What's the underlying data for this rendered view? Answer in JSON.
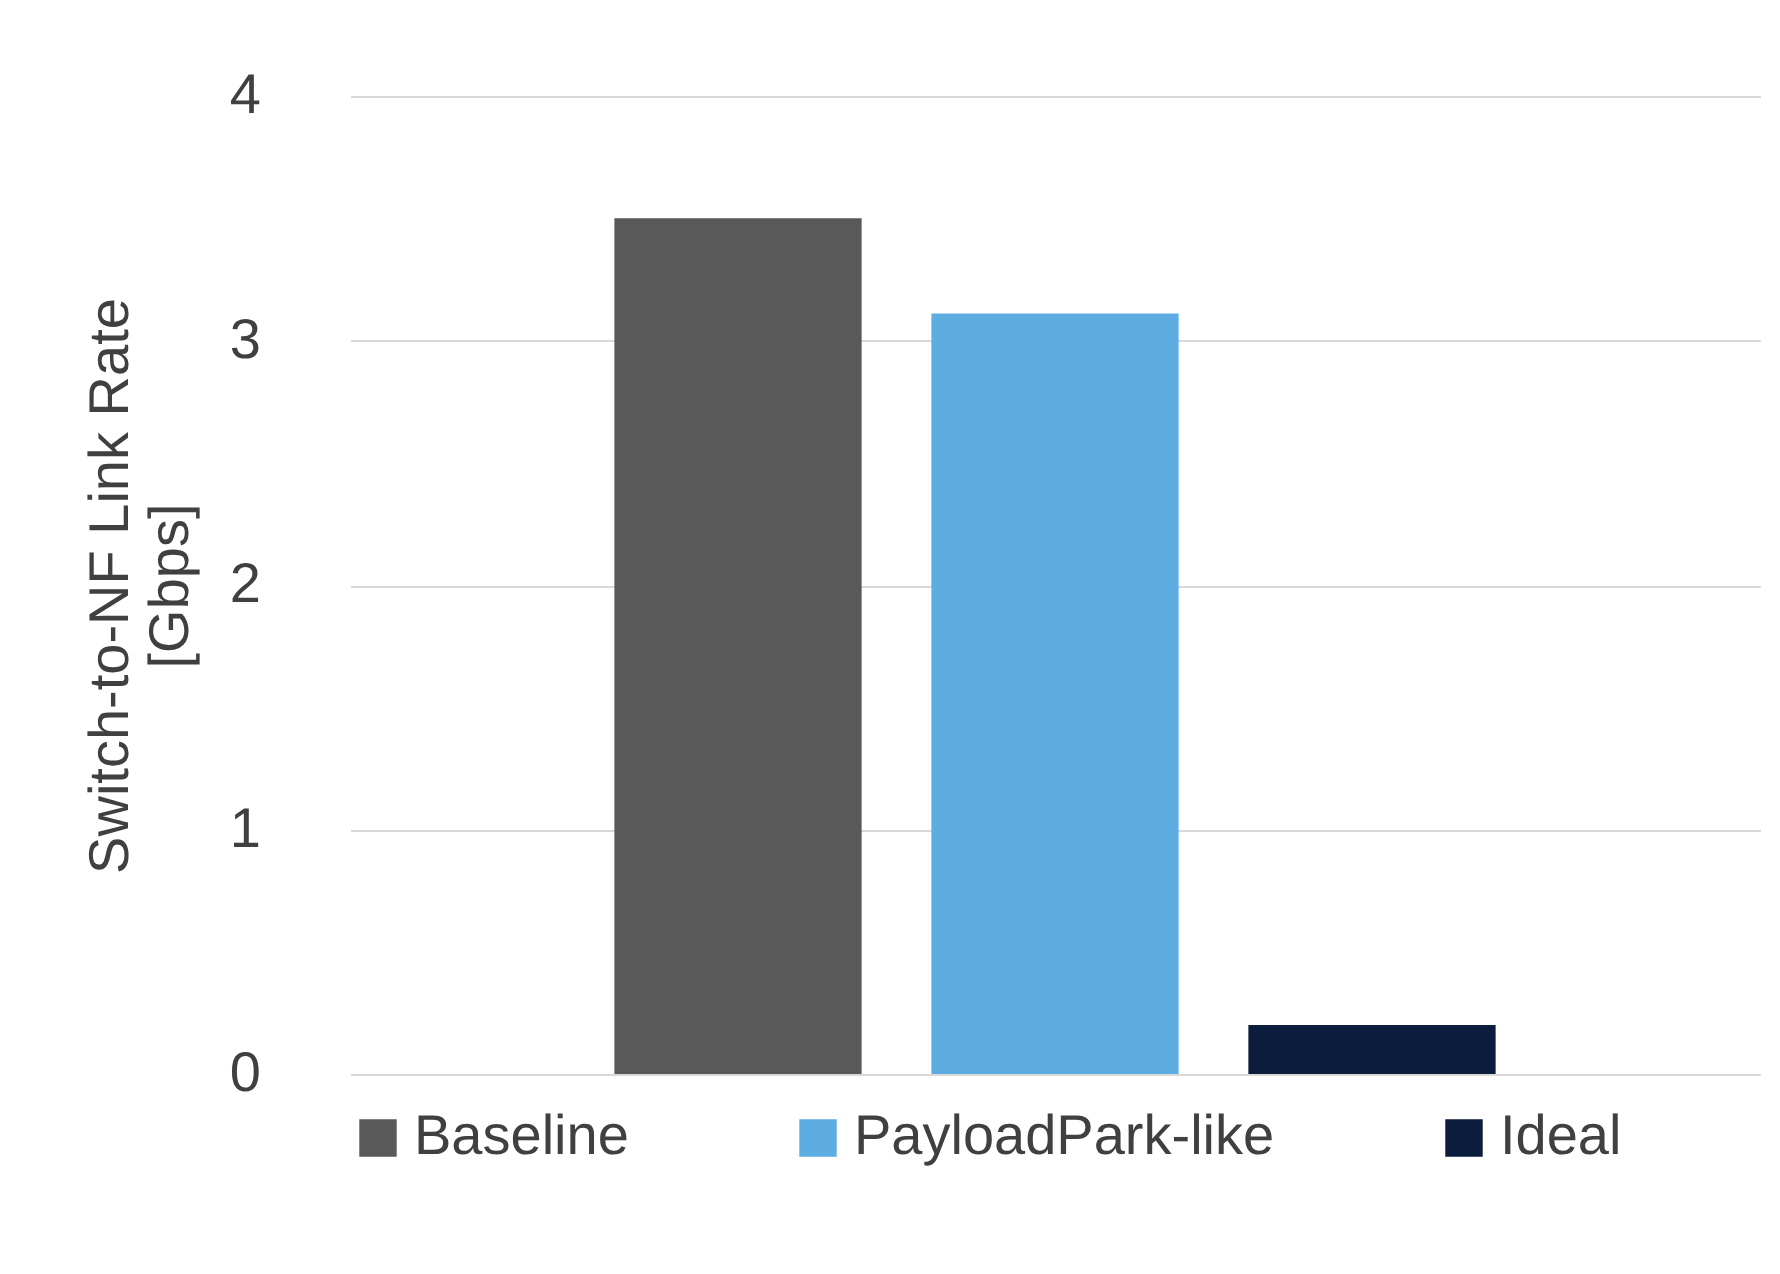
{
  "chart_data": {
    "type": "bar",
    "ylabel": "Switch-to-NF Link Rate [Gbps]",
    "categories": [
      null
    ],
    "series": [
      {
        "name": "Baseline",
        "color": "#595959",
        "values": [
          3.5
        ]
      },
      {
        "name": "PayloadPark-like",
        "color": "#5dade2",
        "values": [
          3.11
        ]
      },
      {
        "name": "Ideal",
        "color": "#0c1c3d",
        "values": [
          0.2
        ]
      }
    ],
    "ylim": [
      0,
      4
    ],
    "yticks": [
      0,
      1,
      2,
      3,
      4
    ],
    "grid": "y",
    "legend": "bottom"
  }
}
